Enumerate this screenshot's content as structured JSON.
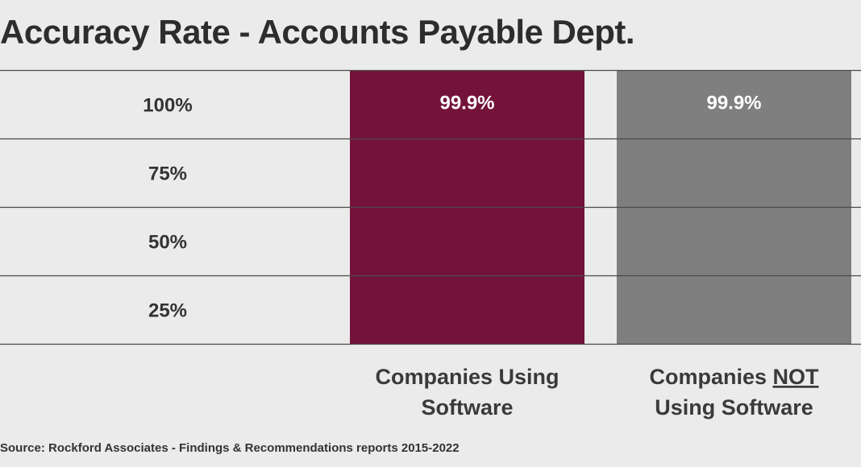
{
  "chart_data": {
    "type": "bar",
    "title": "Accuracy Rate - Accounts Payable Dept.",
    "categories": [
      [
        "Companies Using",
        "Software"
      ],
      [
        "Companies NOT",
        "Using Software"
      ]
    ],
    "values": [
      99.9,
      99.9
    ],
    "data_labels": [
      "99.9%",
      "99.9%"
    ],
    "bar_colors": [
      "#73133a",
      "#7f7f7f"
    ],
    "y_ticks": [
      {
        "value": 100,
        "label": "100%"
      },
      {
        "value": 75,
        "label": "75%"
      },
      {
        "value": 50,
        "label": "50%"
      },
      {
        "value": 25,
        "label": "25%"
      }
    ],
    "ylim": [
      0,
      100
    ],
    "grid": true,
    "emphasis": {
      "category_index": 1,
      "line_index": 0,
      "word": "NOT"
    }
  },
  "source": "Source: Rockford Associates - Findings & Recommendations reports 2015-2022",
  "colors": {
    "background": "#ebebeb",
    "gridline": "#4a4a4a",
    "text": "#2f2f2f"
  }
}
